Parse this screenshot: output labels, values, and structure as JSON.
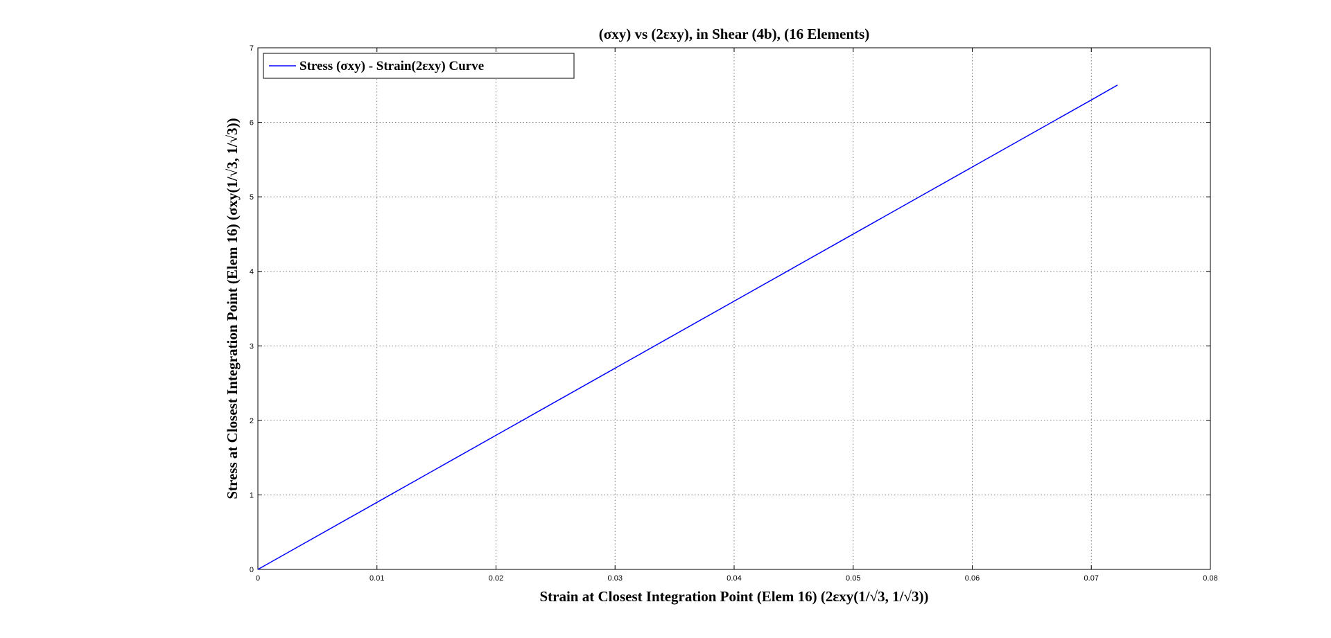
{
  "chart_data": {
    "type": "line",
    "title": "(σxy) vs (2εxy), in Shear (4b), (16 Elements)",
    "xlabel": "Strain at Closest Integration Point (Elem 16) (2εxy(1/√3, 1/√3))",
    "ylabel": "Stress at Closest Integration Point (Elem 16) (σxy(1/√3, 1/√3))",
    "xlim": [
      0,
      0.08
    ],
    "ylim": [
      0,
      7
    ],
    "xticks": [
      0,
      0.01,
      0.02,
      0.03,
      0.04,
      0.05,
      0.06,
      0.07,
      0.08
    ],
    "xtick_labels": [
      "0",
      "0.01",
      "0.02",
      "0.03",
      "0.04",
      "0.05",
      "0.06",
      "0.07",
      "0.08"
    ],
    "yticks": [
      0,
      1,
      2,
      3,
      4,
      5,
      6,
      7
    ],
    "ytick_labels": [
      "0",
      "1",
      "2",
      "3",
      "4",
      "5",
      "6",
      "7"
    ],
    "grid": true,
    "legend_position": "top-left",
    "series": [
      {
        "name": "Stress (σxy) - Strain(2εxy) Curve",
        "color": "#0000ff",
        "x": [
          0,
          0.01,
          0.02,
          0.03,
          0.04,
          0.05,
          0.06,
          0.07,
          0.0722
        ],
        "y": [
          0,
          0.9,
          1.8,
          2.7,
          3.6,
          4.5,
          5.4,
          6.3,
          6.5
        ]
      }
    ]
  }
}
